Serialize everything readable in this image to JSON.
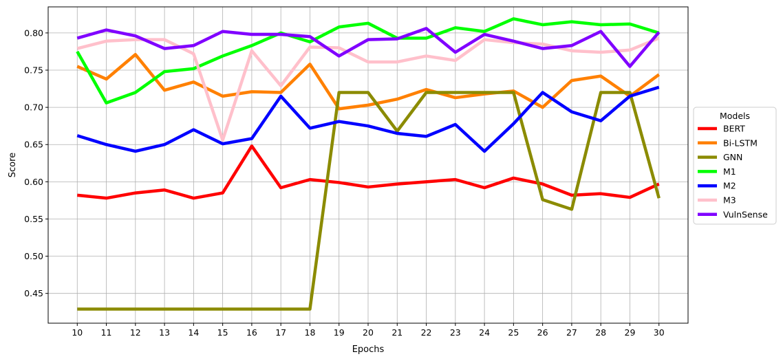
{
  "chart_data": {
    "type": "line",
    "title": "",
    "xlabel": "Epochs",
    "ylabel": "Score",
    "x": [
      10,
      11,
      12,
      13,
      14,
      15,
      16,
      17,
      18,
      19,
      20,
      21,
      22,
      23,
      24,
      25,
      26,
      27,
      28,
      29,
      30
    ],
    "xlim": [
      9,
      31
    ],
    "ylim": [
      0.41,
      0.835
    ],
    "yticks": [
      "0.45",
      "0.50",
      "0.55",
      "0.60",
      "0.65",
      "0.70",
      "0.75",
      "0.80"
    ],
    "grid": true,
    "legend": {
      "title": "Models",
      "placement": "center-right-outside"
    },
    "series": [
      {
        "name": "BERT",
        "color": "#ff0000",
        "values": [
          0.582,
          0.578,
          0.585,
          0.589,
          0.578,
          0.585,
          0.648,
          0.592,
          0.603,
          0.599,
          0.593,
          0.597,
          0.6,
          0.603,
          0.592,
          0.605,
          0.597,
          0.582,
          0.584,
          0.579,
          0.597
        ]
      },
      {
        "name": "Bi-LSTM",
        "color": "#ff8000",
        "values": [
          0.755,
          0.738,
          0.771,
          0.723,
          0.734,
          0.715,
          0.721,
          0.72,
          0.758,
          0.698,
          0.703,
          0.711,
          0.724,
          0.713,
          0.718,
          0.722,
          0.7,
          0.736,
          0.742,
          0.715,
          0.744
        ]
      },
      {
        "name": "GNN",
        "color": "#8b8b00",
        "values": [
          0.429,
          0.429,
          0.429,
          0.429,
          0.429,
          0.429,
          0.429,
          0.429,
          0.429,
          0.72,
          0.72,
          0.668,
          0.72,
          0.72,
          0.72,
          0.72,
          0.576,
          0.563,
          0.72,
          0.72,
          0.578
        ]
      },
      {
        "name": "M1",
        "color": "#00ff00",
        "values": [
          0.775,
          0.706,
          0.72,
          0.748,
          0.752,
          0.769,
          0.783,
          0.8,
          0.788,
          0.808,
          0.813,
          0.793,
          0.793,
          0.807,
          0.802,
          0.819,
          0.811,
          0.815,
          0.811,
          0.812,
          0.8
        ]
      },
      {
        "name": "M2",
        "color": "#0000ff",
        "values": [
          0.662,
          0.65,
          0.641,
          0.65,
          0.67,
          0.651,
          0.658,
          0.715,
          0.672,
          0.681,
          0.675,
          0.665,
          0.661,
          0.677,
          0.641,
          0.678,
          0.72,
          0.694,
          0.682,
          0.715,
          0.727
        ]
      },
      {
        "name": "M3",
        "color": "#ffc0cb",
        "values": [
          0.779,
          0.789,
          0.791,
          0.791,
          0.772,
          0.656,
          0.776,
          0.729,
          0.781,
          0.78,
          0.761,
          0.761,
          0.769,
          0.763,
          0.791,
          0.787,
          0.785,
          0.776,
          0.774,
          0.777,
          0.793
        ]
      },
      {
        "name": "VulnSense",
        "color": "#8000ff",
        "values": [
          0.793,
          0.804,
          0.796,
          0.779,
          0.783,
          0.802,
          0.798,
          0.798,
          0.795,
          0.769,
          0.791,
          0.792,
          0.806,
          0.774,
          0.798,
          0.789,
          0.779,
          0.783,
          0.802,
          0.755,
          0.801
        ]
      }
    ]
  }
}
